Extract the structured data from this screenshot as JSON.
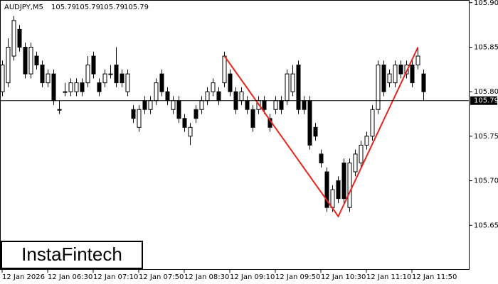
{
  "chart_data": {
    "type": "candlestick",
    "symbol": "AUDJPY,M5",
    "header_values": [
      105.79,
      105.79,
      105.79,
      105.79
    ],
    "brand": "InstaFintech",
    "categories": [
      "12 Jan 2026",
      null,
      null,
      null,
      null,
      null,
      null,
      null,
      "12 Jan 06:30",
      null,
      null,
      null,
      null,
      null,
      null,
      null,
      "12 Jan 07:10",
      null,
      null,
      null,
      null,
      null,
      null,
      null,
      "12 Jan 07:50",
      null,
      null,
      null,
      null,
      null,
      null,
      null,
      "12 Jan 08:30",
      null,
      null,
      null,
      null,
      null,
      null,
      null,
      "12 Jan 09:10",
      null,
      null,
      null,
      null,
      null,
      null,
      null,
      "12 Jan 09:50",
      null,
      null,
      null,
      null,
      null,
      null,
      null,
      "12 Jan 10:30",
      null,
      null,
      null,
      null,
      null,
      null,
      null,
      "12 Jan 11:10",
      null,
      null,
      null,
      null,
      null,
      null,
      null,
      "12 Jan 11:50",
      null,
      null
    ],
    "open": [
      105.8,
      105.81,
      105.84,
      105.87,
      105.85,
      105.82,
      105.84,
      105.83,
      105.81,
      105.82,
      105.78,
      105.8,
      105.8,
      105.8,
      105.81,
      105.81,
      105.84,
      105.81,
      105.81,
      105.82,
      105.83,
      105.82,
      105.8,
      105.78,
      105.76,
      105.79,
      105.78,
      105.79,
      105.82,
      105.8,
      105.78,
      105.79,
      105.77,
      105.75,
      105.78,
      105.78,
      105.79,
      105.8,
      105.8,
      105.81,
      105.82,
      105.8,
      105.79,
      105.79,
      105.78,
      105.78,
      105.79,
      105.77,
      105.78,
      105.79,
      105.79,
      105.8,
      105.83,
      105.79,
      105.79,
      105.76,
      105.73,
      105.71,
      105.67,
      105.7,
      105.72,
      105.67,
      105.71,
      105.72,
      105.74,
      105.75,
      105.78,
      105.83,
      105.81,
      105.81,
      105.83,
      105.82,
      105.83,
      105.83,
      105.82
    ],
    "high": [
      105.835,
      105.86,
      105.885,
      105.875,
      105.855,
      105.855,
      105.845,
      105.835,
      105.825,
      105.825,
      105.79,
      105.81,
      105.815,
      105.815,
      105.815,
      105.84,
      105.845,
      105.815,
      105.825,
      105.83,
      105.85,
      105.825,
      105.825,
      105.785,
      105.785,
      105.795,
      105.795,
      105.815,
      105.825,
      105.805,
      105.795,
      105.795,
      105.775,
      105.765,
      105.785,
      105.795,
      105.805,
      105.815,
      105.805,
      105.845,
      105.825,
      105.805,
      105.805,
      105.795,
      105.785,
      105.795,
      105.795,
      105.775,
      105.795,
      105.795,
      105.825,
      105.83,
      105.835,
      105.795,
      105.795,
      105.765,
      105.735,
      105.715,
      105.695,
      105.705,
      105.725,
      105.725,
      105.735,
      105.745,
      105.755,
      105.785,
      105.835,
      105.835,
      105.825,
      105.835,
      105.835,
      105.835,
      105.835,
      105.85,
      105.825
    ],
    "low": [
      105.795,
      105.805,
      105.835,
      105.845,
      105.815,
      105.815,
      105.825,
      105.805,
      105.805,
      105.785,
      105.775,
      105.795,
      105.795,
      105.795,
      105.795,
      105.805,
      105.815,
      105.795,
      105.805,
      105.815,
      105.805,
      105.805,
      105.795,
      105.765,
      105.755,
      105.775,
      105.775,
      105.785,
      105.795,
      105.785,
      105.775,
      105.765,
      105.755,
      105.74,
      105.765,
      105.775,
      105.785,
      105.795,
      105.785,
      105.805,
      105.795,
      105.775,
      105.785,
      105.775,
      105.755,
      105.775,
      105.775,
      105.755,
      105.775,
      105.775,
      105.785,
      105.795,
      105.775,
      105.775,
      105.735,
      105.745,
      105.715,
      105.665,
      105.665,
      105.675,
      105.675,
      105.665,
      105.705,
      105.715,
      105.735,
      105.745,
      105.775,
      105.795,
      105.805,
      105.805,
      105.815,
      105.815,
      105.805,
      105.825,
      105.79
    ],
    "close": [
      105.83,
      105.85,
      105.88,
      105.85,
      105.82,
      105.85,
      105.83,
      105.81,
      105.82,
      105.79,
      105.78,
      105.8,
      105.81,
      105.81,
      105.8,
      105.83,
      105.82,
      105.8,
      105.82,
      105.82,
      105.81,
      105.81,
      105.82,
      105.77,
      105.78,
      105.78,
      105.79,
      105.81,
      105.8,
      105.79,
      105.79,
      105.77,
      105.76,
      105.76,
      105.77,
      105.79,
      105.8,
      105.81,
      105.79,
      105.84,
      105.8,
      105.78,
      105.8,
      105.78,
      105.76,
      105.79,
      105.78,
      105.76,
      105.79,
      105.78,
      105.82,
      105.82,
      105.78,
      105.78,
      105.74,
      105.75,
      105.72,
      105.67,
      105.69,
      105.68,
      105.68,
      105.72,
      105.73,
      105.74,
      105.75,
      105.78,
      105.83,
      105.8,
      105.82,
      105.83,
      105.82,
      105.83,
      105.81,
      105.84,
      105.8
    ],
    "up_color": "#ffffff",
    "down_color": "#000000",
    "pattern": {
      "color": "#e8251d",
      "values": [
        105.84,
        105.66,
        105.85
      ]
    },
    "last_price": 105.79,
    "ylim": [
      105.6,
      105.903
    ],
    "yticks": [
      {
        "value": 105.9,
        "label": "105.90"
      },
      105.85,
      {
        "value": 105.8,
        "label": "105.80"
      },
      105.75,
      {
        "value": 105.7,
        "label": "105.70"
      },
      105.65
    ]
  }
}
